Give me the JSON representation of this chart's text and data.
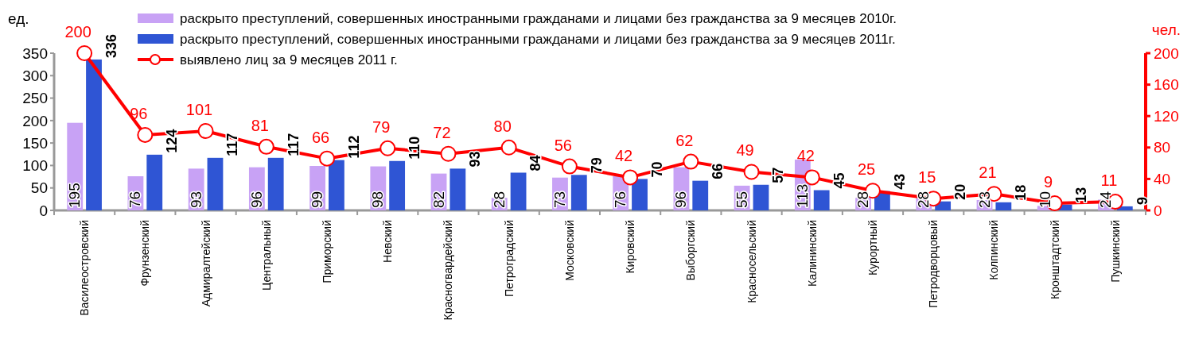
{
  "chart_data": {
    "type": "bar",
    "ylabel": "ед.",
    "y2label": "чел.",
    "categories": [
      "Василеостровский",
      "Фрунзенский",
      "Адмиралтейский",
      "Центральный",
      "Приморский",
      "Невский",
      "Красногвардейский",
      "Петроградский",
      "Московский",
      "Кировский",
      "Выборгский",
      "Красносельский",
      "Калининский",
      "Курортный",
      "Петродворцовый",
      "Колпинский",
      "Кронштадтский",
      "Пушкинский"
    ],
    "series": [
      {
        "name": "раскрыто преступлений, совершенных иностранными гражданами и лицами без гражданства за 9 месяцев 2010г.",
        "color": "#c8a2f5",
        "values": [
          195,
          76,
          93,
          96,
          99,
          98,
          82,
          28,
          73,
          76,
          96,
          55,
          113,
          28,
          28,
          23,
          10,
          24
        ]
      },
      {
        "name": "раскрыто преступлений, совершенных иностранными гражданами и лицами без гражданства за 9 месяцев 2011г.",
        "color": "#2f55d4",
        "values": [
          336,
          124,
          117,
          117,
          112,
          110,
          93,
          84,
          79,
          70,
          66,
          57,
          45,
          43,
          20,
          18,
          13,
          9
        ]
      },
      {
        "name": "выявлено лиц за 9 месяцев 2011 г.",
        "type": "line",
        "axis": "y2",
        "color": "#ff0000",
        "marker": "circle",
        "values": [
          200,
          96,
          101,
          81,
          66,
          79,
          72,
          80,
          56,
          42,
          62,
          49,
          42,
          25,
          15,
          21,
          9,
          11
        ]
      }
    ],
    "ylim": [
      0,
      350
    ],
    "yticks": [
      0,
      50,
      100,
      150,
      200,
      250,
      300,
      350
    ],
    "y2lim": [
      0,
      200
    ],
    "y2ticks": [
      0,
      40,
      80,
      120,
      160,
      200
    ],
    "data_labels": true,
    "grid": false,
    "legend": "top"
  }
}
